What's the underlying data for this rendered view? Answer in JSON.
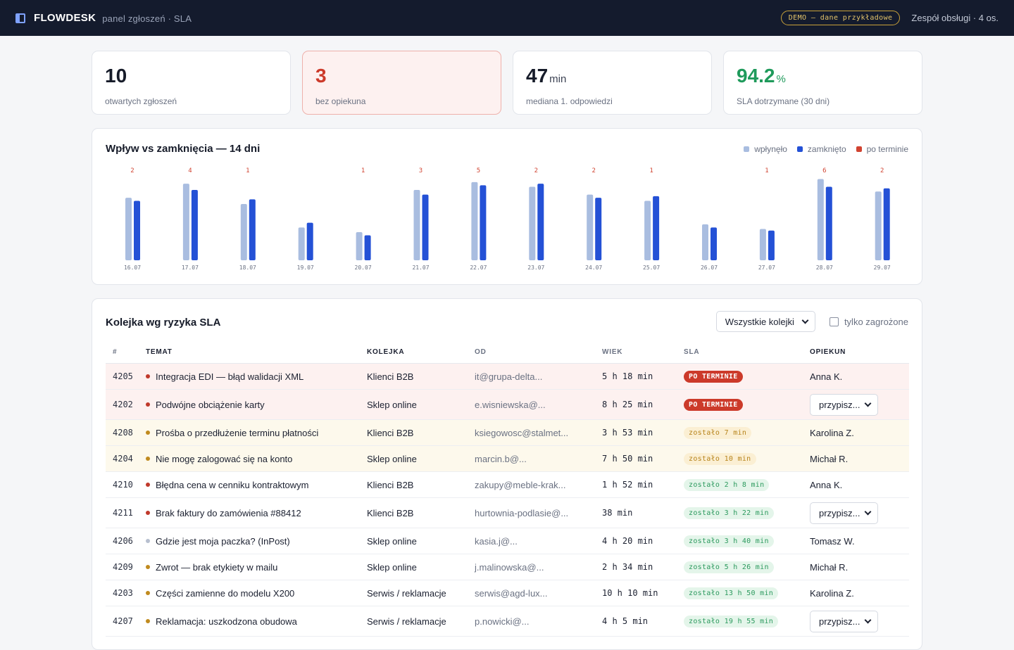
{
  "header": {
    "brand": "FLOWDESK",
    "subtitle": "panel zgłoszeń · SLA",
    "demo_badge": "DEMO — dane przykładowe",
    "team": "Zespół obsługi · 4 os."
  },
  "kpis": [
    {
      "value": "10",
      "unit": "",
      "label": "otwartych zgłoszeń",
      "tone": "normal"
    },
    {
      "value": "3",
      "unit": "",
      "label": "bez opiekuna",
      "tone": "red"
    },
    {
      "value": "47",
      "unit": "min",
      "label": "mediana 1. odpowiedzi",
      "tone": "normal"
    },
    {
      "value": "94.2",
      "unit": "%",
      "label": "SLA dotrzymane (30 dni)",
      "tone": "green"
    }
  ],
  "chart": {
    "title": "Wpływ vs zamknięcia — 14 dni",
    "legend": [
      "wpłynęło",
      "zamknięto",
      "po terminie"
    ]
  },
  "colors": {
    "incoming": "#a9bde0",
    "closed": "#2451d6",
    "overdue": "#d14331",
    "accent_green": "#1f9a5b",
    "accent_red": "#cc3a2a"
  },
  "chart_data": {
    "type": "bar",
    "categories": [
      "16.07",
      "17.07",
      "18.07",
      "19.07",
      "20.07",
      "21.07",
      "22.07",
      "23.07",
      "24.07",
      "25.07",
      "26.07",
      "27.07",
      "28.07",
      "29.07"
    ],
    "series": [
      {
        "name": "wpłynęło",
        "values": [
          20,
          24.5,
          18,
          10.5,
          9,
          22.5,
          25,
          23.5,
          21,
          19,
          11.5,
          10,
          26,
          22
        ]
      },
      {
        "name": "zamknięto",
        "values": [
          19,
          22.5,
          19.5,
          12,
          8,
          21,
          24,
          24.5,
          20,
          20.5,
          10.5,
          9.5,
          23.5,
          23
        ]
      },
      {
        "name": "po terminie",
        "values": [
          2,
          4,
          1,
          0,
          1,
          3,
          5,
          2,
          2,
          1,
          0,
          1,
          6,
          2
        ]
      }
    ],
    "ylim": [
      0,
      27
    ],
    "grid": false,
    "legend_position": "top-right"
  },
  "queue": {
    "title": "Kolejka wg ryzyka SLA",
    "filter_value": "Wszystkie kolejki",
    "checkbox_label": "tylko zagrożone",
    "columns": [
      "#",
      "TEMAT",
      "KOLEJKA",
      "OD",
      "WIEK",
      "SLA",
      "OPIEKUN"
    ],
    "rows": [
      {
        "id": "4205",
        "topic": "Integracja EDI — błąd walidacji XML",
        "priority": "red",
        "queue": "Klienci B2B",
        "from": "it@grupa-delta...",
        "age": "5 h 18 min",
        "sla": "PO TERMINIE",
        "sla_status": "late",
        "owner": "Anna K.",
        "assign": false,
        "tone": "red"
      },
      {
        "id": "4202",
        "topic": "Podwójne obciążenie karty",
        "priority": "red",
        "queue": "Sklep online",
        "from": "e.wisniewska@...",
        "age": "8 h 25 min",
        "sla": "PO TERMINIE",
        "sla_status": "late",
        "owner": "przypisz...",
        "assign": true,
        "tone": "red"
      },
      {
        "id": "4208",
        "topic": "Prośba o przedłużenie terminu płatności",
        "priority": "amber",
        "queue": "Klienci B2B",
        "from": "ksiegowosc@stalmet...",
        "age": "3 h 53 min",
        "sla": "zostało 7 min",
        "sla_status": "warn",
        "owner": "Karolina Z.",
        "assign": false,
        "tone": "amber"
      },
      {
        "id": "4204",
        "topic": "Nie mogę zalogować się na konto",
        "priority": "amber",
        "queue": "Sklep online",
        "from": "marcin.b@...",
        "age": "7 h 50 min",
        "sla": "zostało 10 min",
        "sla_status": "warn",
        "owner": "Michał R.",
        "assign": false,
        "tone": "amber"
      },
      {
        "id": "4210",
        "topic": "Błędna cena w cenniku kontraktowym",
        "priority": "red",
        "queue": "Klienci B2B",
        "from": "zakupy@meble-krak...",
        "age": "1 h 52 min",
        "sla": "zostało 2 h 8 min",
        "sla_status": "ok",
        "owner": "Anna K.",
        "assign": false,
        "tone": "none"
      },
      {
        "id": "4211",
        "topic": "Brak faktury do zamówienia #88412",
        "priority": "red",
        "queue": "Klienci B2B",
        "from": "hurtownia-podlasie@...",
        "age": "38 min",
        "sla": "zostało 3 h 22 min",
        "sla_status": "ok",
        "owner": "przypisz...",
        "assign": true,
        "tone": "none"
      },
      {
        "id": "4206",
        "topic": "Gdzie jest moja paczka? (InPost)",
        "priority": "low",
        "queue": "Sklep online",
        "from": "kasia.j@...",
        "age": "4 h 20 min",
        "sla": "zostało 3 h 40 min",
        "sla_status": "ok",
        "owner": "Tomasz W.",
        "assign": false,
        "tone": "none"
      },
      {
        "id": "4209",
        "topic": "Zwrot — brak etykiety w mailu",
        "priority": "amber",
        "queue": "Sklep online",
        "from": "j.malinowska@...",
        "age": "2 h 34 min",
        "sla": "zostało 5 h 26 min",
        "sla_status": "ok",
        "owner": "Michał R.",
        "assign": false,
        "tone": "none"
      },
      {
        "id": "4203",
        "topic": "Części zamienne do modelu X200",
        "priority": "amber",
        "queue": "Serwis / reklamacje",
        "from": "serwis@agd-lux...",
        "age": "10 h 10 min",
        "sla": "zostało 13 h 50 min",
        "sla_status": "ok",
        "owner": "Karolina Z.",
        "assign": false,
        "tone": "none"
      },
      {
        "id": "4207",
        "topic": "Reklamacja: uszkodzona obudowa",
        "priority": "amber",
        "queue": "Serwis / reklamacje",
        "from": "p.nowicki@...",
        "age": "4 h 5 min",
        "sla": "zostało 19 h 55 min",
        "sla_status": "ok",
        "owner": "przypisz...",
        "assign": true,
        "tone": "none"
      }
    ]
  }
}
